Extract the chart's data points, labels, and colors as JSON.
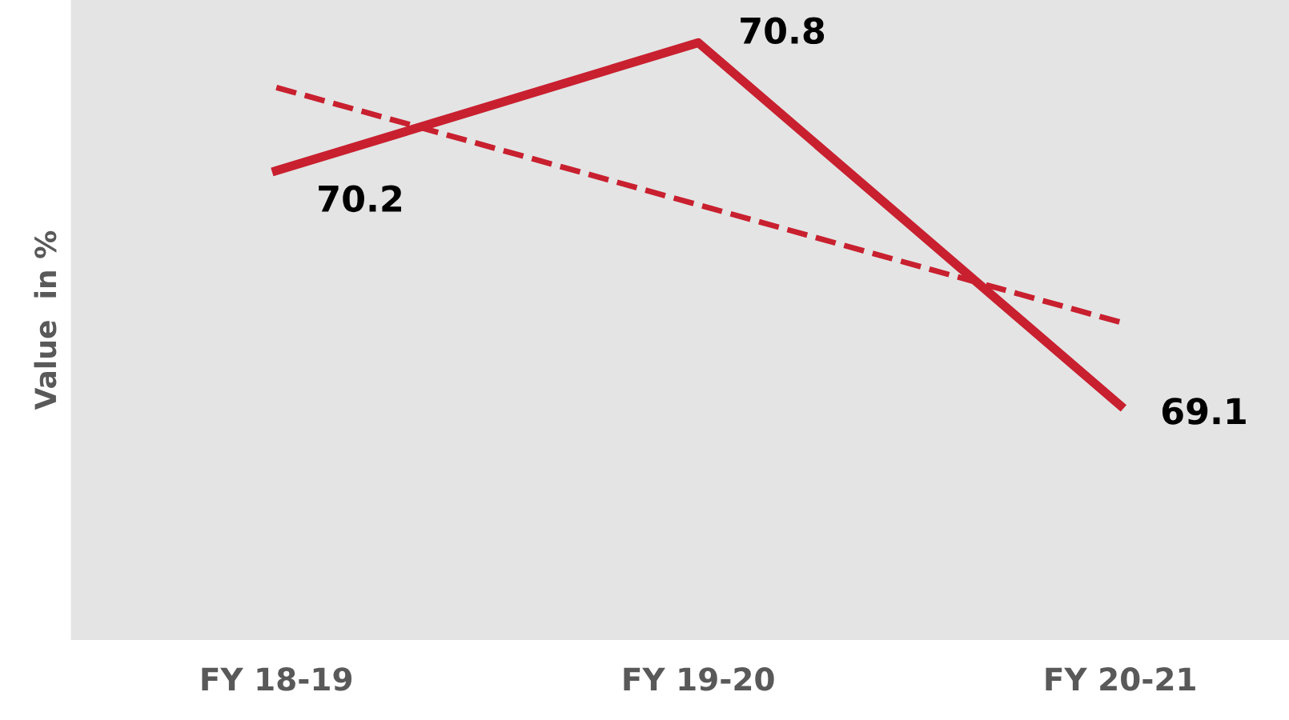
{
  "chart_data": {
    "type": "line",
    "ylabel": "Value  in %",
    "categories": [
      "FY 18-19",
      "FY 19-20",
      "FY 20-21"
    ],
    "series": [
      {
        "color": "#c8202f",
        "values": [
          70.2,
          70.8,
          69.1
        ],
        "value_labels": [
          "70.2",
          "70.8",
          "69.1"
        ],
        "line_style": "solid"
      },
      {
        "color": "#c8202f",
        "values": [
          70.59,
          70.04,
          69.49
        ],
        "line_style": "dashed"
      }
    ],
    "ylim": [
      68,
      71
    ],
    "tick_labels": "x",
    "grid": false,
    "legend": false,
    "marker": "none"
  }
}
